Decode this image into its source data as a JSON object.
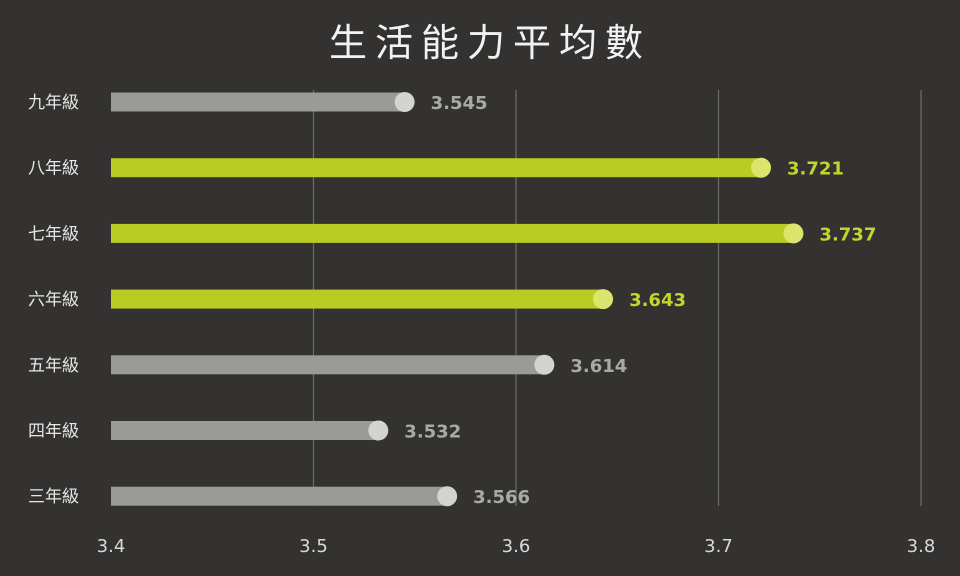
{
  "chart_data": {
    "type": "bar",
    "orientation": "horizontal",
    "title": "生活能力平均數",
    "xlabel": "",
    "ylabel": "",
    "categories": [
      "九年級",
      "八年級",
      "七年級",
      "六年級",
      "五年級",
      "四年級",
      "三年級"
    ],
    "values": [
      3.545,
      3.721,
      3.737,
      3.643,
      3.614,
      3.532,
      3.566
    ],
    "value_labels": [
      "3.545",
      "3.721",
      "3.737",
      "3.643",
      "3.614",
      "3.532",
      "3.566"
    ],
    "highlighted": [
      false,
      true,
      true,
      true,
      false,
      false,
      false
    ],
    "xlim": [
      3.4,
      3.8
    ],
    "x_ticks": [
      "3.4",
      "3.5",
      "3.6",
      "3.7",
      "3.8"
    ],
    "grid": true,
    "colors": {
      "background": "#333230",
      "bar_default": "#9a9a99",
      "bar_highlight": "#b9cc23",
      "cap_default": "#d3d3d2",
      "cap_highlight": "#dbe56e",
      "label_default": "#a9a9a7",
      "label_highlight": "#c4d42c",
      "grid": "#6e6d6a"
    }
  }
}
